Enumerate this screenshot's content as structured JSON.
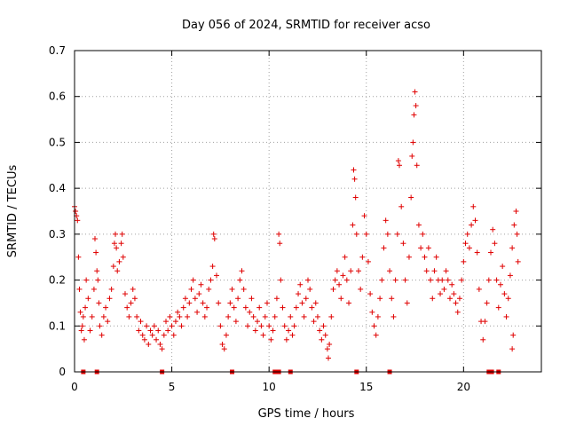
{
  "chart_data": {
    "type": "scatter",
    "title": "Day 056 of 2024, SRMTID for receiver acso",
    "xlabel": "GPS time / hours",
    "ylabel": "SRMTID / TECUs",
    "xlim": [
      0,
      24
    ],
    "ylim": [
      0,
      0.7
    ],
    "x_ticks": [
      0,
      5,
      10,
      15,
      20
    ],
    "x_tick_labels": [
      "0",
      "5",
      "10",
      "15",
      "20"
    ],
    "y_ticks": [
      0,
      0.1,
      0.2,
      0.3,
      0.4,
      0.5,
      0.6,
      0.7
    ],
    "y_tick_labels": [
      "0",
      "0.1",
      "0.2",
      "0.3",
      "0.4",
      "0.5",
      "0.6",
      "0.7"
    ],
    "grid": true,
    "marker": "plus",
    "color": "#e00000",
    "series": [
      {
        "name": "SRMTID",
        "points": [
          [
            0.0,
            0.36
          ],
          [
            0.05,
            0.35
          ],
          [
            0.1,
            0.34
          ],
          [
            0.15,
            0.33
          ],
          [
            0.2,
            0.25
          ],
          [
            0.25,
            0.18
          ],
          [
            0.3,
            0.13
          ],
          [
            0.35,
            0.09
          ],
          [
            0.4,
            0.1
          ],
          [
            0.45,
            0.12
          ],
          [
            0.5,
            0.07
          ],
          [
            0.55,
            0.14
          ],
          [
            0.6,
            0.2
          ],
          [
            0.7,
            0.16
          ],
          [
            0.8,
            0.09
          ],
          [
            0.9,
            0.12
          ],
          [
            1.0,
            0.18
          ],
          [
            1.05,
            0.29
          ],
          [
            1.1,
            0.26
          ],
          [
            1.15,
            0.22
          ],
          [
            1.2,
            0.2
          ],
          [
            1.25,
            0.15
          ],
          [
            1.3,
            0.1
          ],
          [
            1.4,
            0.08
          ],
          [
            1.5,
            0.12
          ],
          [
            1.6,
            0.14
          ],
          [
            1.7,
            0.11
          ],
          [
            1.8,
            0.16
          ],
          [
            1.9,
            0.18
          ],
          [
            2.0,
            0.23
          ],
          [
            2.05,
            0.28
          ],
          [
            2.1,
            0.3
          ],
          [
            2.15,
            0.27
          ],
          [
            2.2,
            0.22
          ],
          [
            2.3,
            0.24
          ],
          [
            2.4,
            0.28
          ],
          [
            2.45,
            0.3
          ],
          [
            2.5,
            0.25
          ],
          [
            2.6,
            0.17
          ],
          [
            2.7,
            0.14
          ],
          [
            2.8,
            0.12
          ],
          [
            2.9,
            0.15
          ],
          [
            3.0,
            0.18
          ],
          [
            3.1,
            0.16
          ],
          [
            3.2,
            0.12
          ],
          [
            3.3,
            0.09
          ],
          [
            3.4,
            0.11
          ],
          [
            3.5,
            0.08
          ],
          [
            3.6,
            0.07
          ],
          [
            3.7,
            0.1
          ],
          [
            3.8,
            0.06
          ],
          [
            3.9,
            0.09
          ],
          [
            4.0,
            0.08
          ],
          [
            4.1,
            0.1
          ],
          [
            4.2,
            0.07
          ],
          [
            4.3,
            0.09
          ],
          [
            4.4,
            0.06
          ],
          [
            4.5,
            0.05
          ],
          [
            4.6,
            0.08
          ],
          [
            4.7,
            0.11
          ],
          [
            4.8,
            0.09
          ],
          [
            4.9,
            0.12
          ],
          [
            5.0,
            0.1
          ],
          [
            5.1,
            0.08
          ],
          [
            5.2,
            0.11
          ],
          [
            5.3,
            0.13
          ],
          [
            5.4,
            0.12
          ],
          [
            5.5,
            0.1
          ],
          [
            5.6,
            0.14
          ],
          [
            5.7,
            0.16
          ],
          [
            5.8,
            0.12
          ],
          [
            5.9,
            0.15
          ],
          [
            6.0,
            0.18
          ],
          [
            6.1,
            0.2
          ],
          [
            6.2,
            0.16
          ],
          [
            6.3,
            0.13
          ],
          [
            6.4,
            0.17
          ],
          [
            6.5,
            0.19
          ],
          [
            6.6,
            0.15
          ],
          [
            6.7,
            0.12
          ],
          [
            6.8,
            0.14
          ],
          [
            6.9,
            0.18
          ],
          [
            7.0,
            0.2
          ],
          [
            7.1,
            0.23
          ],
          [
            7.15,
            0.3
          ],
          [
            7.2,
            0.29
          ],
          [
            7.3,
            0.21
          ],
          [
            7.4,
            0.15
          ],
          [
            7.5,
            0.1
          ],
          [
            7.6,
            0.06
          ],
          [
            7.7,
            0.05
          ],
          [
            7.8,
            0.08
          ],
          [
            7.9,
            0.12
          ],
          [
            8.0,
            0.15
          ],
          [
            8.1,
            0.18
          ],
          [
            8.2,
            0.14
          ],
          [
            8.3,
            0.11
          ],
          [
            8.4,
            0.16
          ],
          [
            8.5,
            0.2
          ],
          [
            8.6,
            0.22
          ],
          [
            8.7,
            0.18
          ],
          [
            8.8,
            0.14
          ],
          [
            8.9,
            0.1
          ],
          [
            9.0,
            0.13
          ],
          [
            9.1,
            0.16
          ],
          [
            9.2,
            0.12
          ],
          [
            9.3,
            0.09
          ],
          [
            9.4,
            0.11
          ],
          [
            9.5,
            0.14
          ],
          [
            9.6,
            0.1
          ],
          [
            9.7,
            0.08
          ],
          [
            9.8,
            0.12
          ],
          [
            9.9,
            0.15
          ],
          [
            10.0,
            0.1
          ],
          [
            10.1,
            0.07
          ],
          [
            10.2,
            0.09
          ],
          [
            10.3,
            0.12
          ],
          [
            10.4,
            0.16
          ],
          [
            10.5,
            0.3
          ],
          [
            10.55,
            0.28
          ],
          [
            10.6,
            0.2
          ],
          [
            10.7,
            0.14
          ],
          [
            10.8,
            0.1
          ],
          [
            10.9,
            0.07
          ],
          [
            11.0,
            0.09
          ],
          [
            11.1,
            0.12
          ],
          [
            11.2,
            0.08
          ],
          [
            11.3,
            0.1
          ],
          [
            11.4,
            0.14
          ],
          [
            11.5,
            0.17
          ],
          [
            11.6,
            0.19
          ],
          [
            11.7,
            0.15
          ],
          [
            11.8,
            0.12
          ],
          [
            11.9,
            0.16
          ],
          [
            12.0,
            0.2
          ],
          [
            12.1,
            0.18
          ],
          [
            12.2,
            0.14
          ],
          [
            12.3,
            0.11
          ],
          [
            12.4,
            0.15
          ],
          [
            12.5,
            0.12
          ],
          [
            12.6,
            0.09
          ],
          [
            12.7,
            0.07
          ],
          [
            12.8,
            0.1
          ],
          [
            12.9,
            0.08
          ],
          [
            13.0,
            0.05
          ],
          [
            13.05,
            0.03
          ],
          [
            13.1,
            0.06
          ],
          [
            13.2,
            0.12
          ],
          [
            13.3,
            0.18
          ],
          [
            13.4,
            0.2
          ],
          [
            13.5,
            0.22
          ],
          [
            13.6,
            0.19
          ],
          [
            13.7,
            0.16
          ],
          [
            13.8,
            0.21
          ],
          [
            13.9,
            0.25
          ],
          [
            14.0,
            0.2
          ],
          [
            14.1,
            0.15
          ],
          [
            14.2,
            0.22
          ],
          [
            14.3,
            0.32
          ],
          [
            14.35,
            0.44
          ],
          [
            14.4,
            0.42
          ],
          [
            14.45,
            0.38
          ],
          [
            14.5,
            0.3
          ],
          [
            14.6,
            0.22
          ],
          [
            14.7,
            0.18
          ],
          [
            14.8,
            0.25
          ],
          [
            14.9,
            0.34
          ],
          [
            15.0,
            0.3
          ],
          [
            15.1,
            0.24
          ],
          [
            15.2,
            0.17
          ],
          [
            15.3,
            0.13
          ],
          [
            15.4,
            0.1
          ],
          [
            15.5,
            0.08
          ],
          [
            15.6,
            0.12
          ],
          [
            15.7,
            0.16
          ],
          [
            15.8,
            0.2
          ],
          [
            15.9,
            0.27
          ],
          [
            16.0,
            0.33
          ],
          [
            16.1,
            0.3
          ],
          [
            16.2,
            0.22
          ],
          [
            16.3,
            0.16
          ],
          [
            16.4,
            0.12
          ],
          [
            16.5,
            0.2
          ],
          [
            16.6,
            0.3
          ],
          [
            16.65,
            0.46
          ],
          [
            16.7,
            0.45
          ],
          [
            16.8,
            0.36
          ],
          [
            16.9,
            0.28
          ],
          [
            17.0,
            0.2
          ],
          [
            17.1,
            0.15
          ],
          [
            17.2,
            0.25
          ],
          [
            17.3,
            0.38
          ],
          [
            17.35,
            0.47
          ],
          [
            17.4,
            0.5
          ],
          [
            17.45,
            0.56
          ],
          [
            17.5,
            0.61
          ],
          [
            17.55,
            0.58
          ],
          [
            17.6,
            0.45
          ],
          [
            17.7,
            0.32
          ],
          [
            17.8,
            0.27
          ],
          [
            17.9,
            0.3
          ],
          [
            18.0,
            0.25
          ],
          [
            18.1,
            0.22
          ],
          [
            18.2,
            0.27
          ],
          [
            18.3,
            0.2
          ],
          [
            18.4,
            0.16
          ],
          [
            18.5,
            0.22
          ],
          [
            18.6,
            0.25
          ],
          [
            18.7,
            0.2
          ],
          [
            18.8,
            0.17
          ],
          [
            18.9,
            0.2
          ],
          [
            19.0,
            0.18
          ],
          [
            19.1,
            0.22
          ],
          [
            19.2,
            0.2
          ],
          [
            19.3,
            0.16
          ],
          [
            19.4,
            0.19
          ],
          [
            19.5,
            0.17
          ],
          [
            19.6,
            0.15
          ],
          [
            19.7,
            0.13
          ],
          [
            19.8,
            0.16
          ],
          [
            19.9,
            0.2
          ],
          [
            20.0,
            0.24
          ],
          [
            20.1,
            0.28
          ],
          [
            20.2,
            0.3
          ],
          [
            20.3,
            0.27
          ],
          [
            20.4,
            0.32
          ],
          [
            20.5,
            0.36
          ],
          [
            20.6,
            0.33
          ],
          [
            20.7,
            0.26
          ],
          [
            20.8,
            0.18
          ],
          [
            20.9,
            0.11
          ],
          [
            21.0,
            0.07
          ],
          [
            21.1,
            0.11
          ],
          [
            21.2,
            0.15
          ],
          [
            21.3,
            0.2
          ],
          [
            21.4,
            0.26
          ],
          [
            21.5,
            0.31
          ],
          [
            21.6,
            0.28
          ],
          [
            21.7,
            0.2
          ],
          [
            21.8,
            0.14
          ],
          [
            21.9,
            0.19
          ],
          [
            22.0,
            0.23
          ],
          [
            22.1,
            0.17
          ],
          [
            22.2,
            0.12
          ],
          [
            22.3,
            0.16
          ],
          [
            22.4,
            0.21
          ],
          [
            22.5,
            0.27
          ],
          [
            22.6,
            0.32
          ],
          [
            22.7,
            0.35
          ],
          [
            22.75,
            0.3
          ],
          [
            22.8,
            0.24
          ],
          [
            22.5,
            0.05
          ],
          [
            22.55,
            0.08
          ]
        ]
      }
    ],
    "zero_markers_x": [
      0.45,
      1.15,
      4.5,
      8.1,
      10.3,
      10.5,
      11.1,
      14.5,
      16.2,
      21.3,
      21.45,
      21.8
    ]
  }
}
